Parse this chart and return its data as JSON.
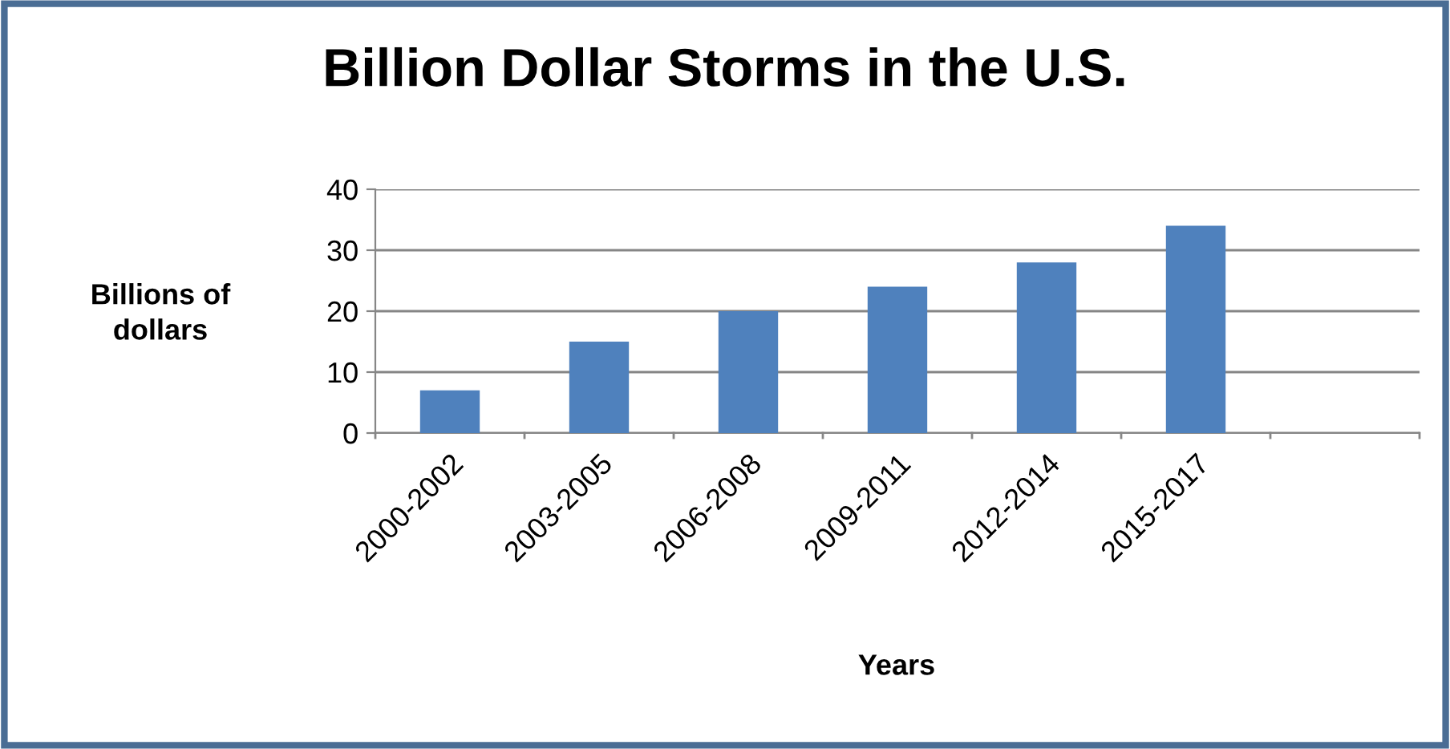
{
  "chart_data": {
    "type": "bar",
    "title": "Billion Dollar Storms in the U.S.",
    "xlabel": "Years",
    "ylabel": "Billions of\ndollars",
    "categories": [
      "2000-2002",
      "2003-2005",
      "2006-2008",
      "2009-2011",
      "2012-2014",
      "2015-2017",
      null
    ],
    "values": [
      7,
      15,
      20,
      24,
      28,
      34,
      null
    ],
    "color": "#4f81bd",
    "ylim": [
      0,
      40
    ],
    "yticks": [
      0,
      10,
      20,
      30,
      40
    ],
    "grid": "y",
    "legend": false
  }
}
